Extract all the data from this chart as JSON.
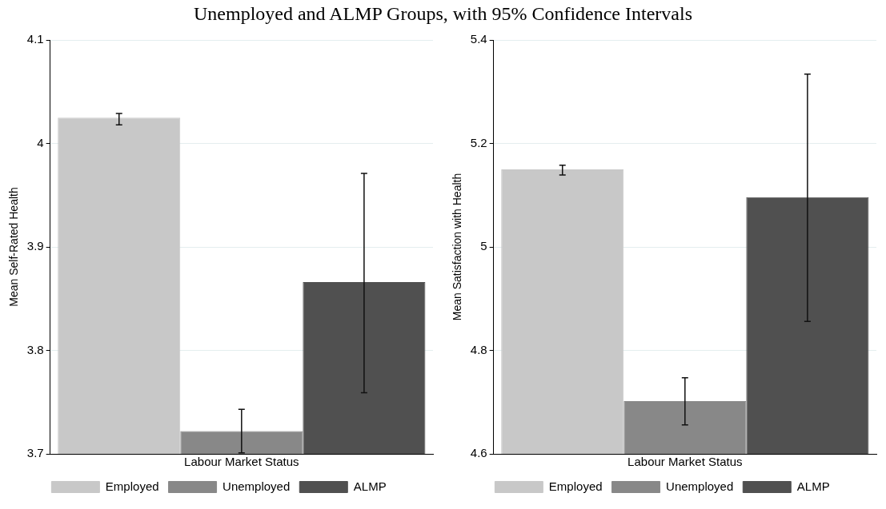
{
  "chart_data": [
    {
      "type": "bar",
      "title": "Unemployed and ALMP Groups, with 95% Confidence Intervals",
      "xlabel": "Labour Market Status",
      "ylabel": "Mean Self-Rated Health",
      "categories": [
        null
      ],
      "series": [
        {
          "name": "Employed",
          "color": "#c8c8c8",
          "values": [
            4.025
          ],
          "errors": [
            [
              4.018,
              4.029
            ]
          ]
        },
        {
          "name": "Unemployed",
          "color": "#888888",
          "values": [
            3.722
          ],
          "errors": [
            [
              3.701,
              3.743
            ]
          ]
        },
        {
          "name": "ALMP",
          "color": "#505050",
          "values": [
            3.866
          ],
          "errors": [
            [
              3.759,
              3.971
            ]
          ]
        }
      ],
      "ylim": [
        3.7,
        4.1
      ],
      "yticks": [
        3.7,
        3.8,
        3.9,
        4,
        4.1
      ],
      "grid": "y",
      "legend": "bottom",
      "tick_labels": "y"
    },
    {
      "type": "bar",
      "xlabel": "Labour Market Status",
      "ylabel": "Mean Satisfaction with Health",
      "categories": [
        null
      ],
      "series": [
        {
          "name": "Employed",
          "color": "#c8c8c8",
          "values": [
            5.15
          ],
          "errors": [
            [
              5.139,
              5.158
            ]
          ]
        },
        {
          "name": "Unemployed",
          "color": "#888888",
          "values": [
            4.702
          ],
          "errors": [
            [
              4.656,
              4.747
            ]
          ]
        },
        {
          "name": "ALMP",
          "color": "#505050",
          "values": [
            5.096
          ],
          "errors": [
            [
              4.856,
              5.334
            ]
          ]
        }
      ],
      "ylim": [
        4.6,
        5.4
      ],
      "yticks": [
        4.6,
        4.8,
        5,
        5.2,
        5.4
      ],
      "grid": "y",
      "legend": "bottom",
      "tick_labels": "y"
    }
  ]
}
